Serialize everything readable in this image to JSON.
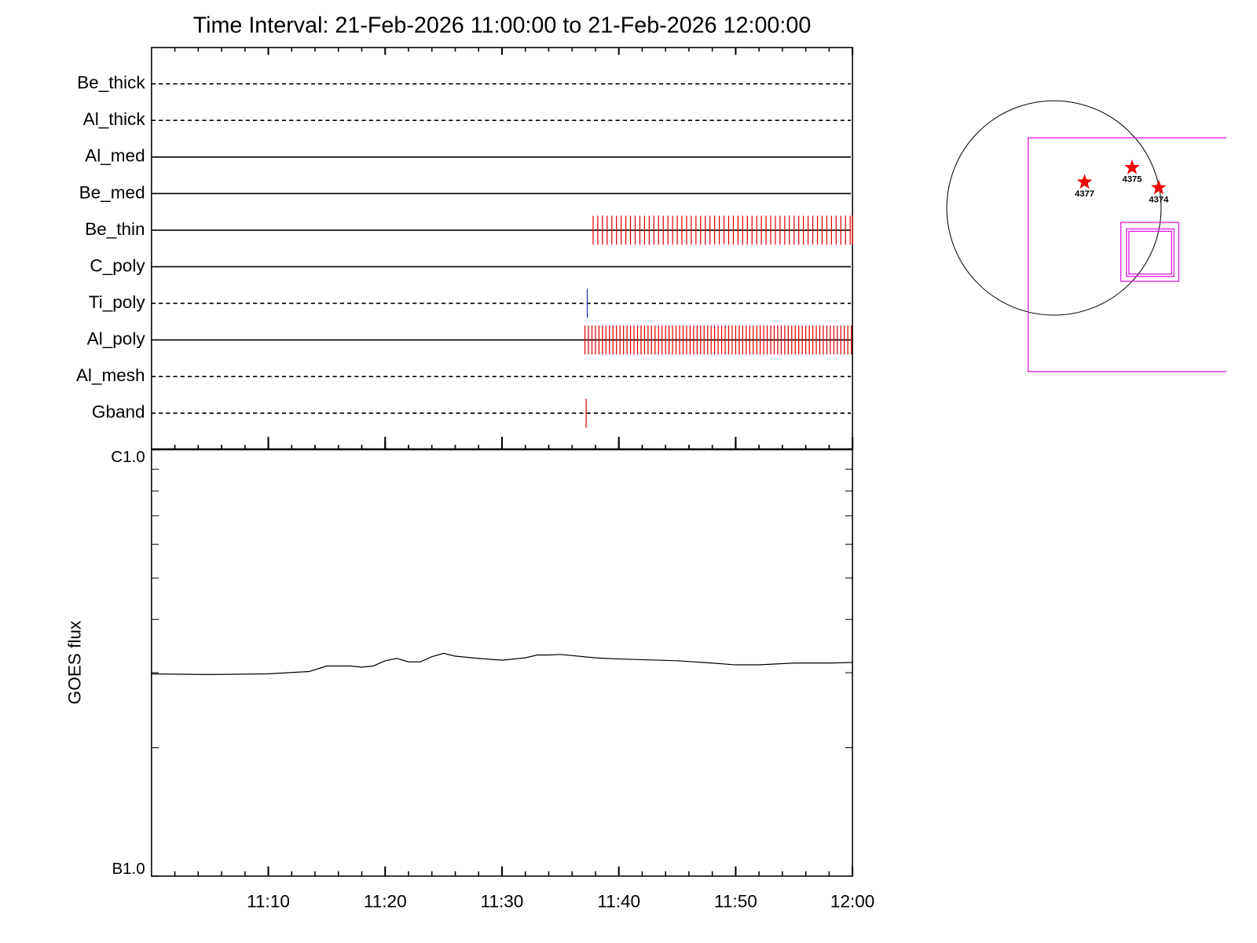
{
  "chart_data": [
    {
      "type": "timeline",
      "title": "Time Interval: 21-Feb-2026 11:00:00 to 21-Feb-2026 12:00:00",
      "xlim": [
        0,
        60
      ],
      "xticks": [
        10,
        20,
        30,
        40,
        50,
        60
      ],
      "xminorticks": [
        2,
        4,
        6,
        8,
        12,
        14,
        16,
        18,
        22,
        24,
        26,
        28,
        32,
        34,
        36,
        38,
        42,
        44,
        46,
        48,
        52,
        54,
        56,
        58
      ],
      "rows": [
        {
          "label": "Be_thick",
          "style": "dashed",
          "times": []
        },
        {
          "label": "Al_thick",
          "style": "dashed",
          "times": []
        },
        {
          "label": "Al_med",
          "style": "solid",
          "times": []
        },
        {
          "label": "Be_med",
          "style": "solid",
          "times": []
        },
        {
          "label": "Be_thin",
          "style": "solid",
          "color": "#e00000",
          "times": [
            37.8,
            38.2,
            38.6,
            39,
            39.4,
            39.8,
            40.2,
            40.6,
            41,
            41.4,
            41.8,
            42.2,
            42.6,
            43,
            43.4,
            43.8,
            44.2,
            44.6,
            45,
            45.4,
            45.8,
            46.2,
            46.6,
            47,
            47.4,
            47.8,
            48.2,
            48.6,
            49,
            49.4,
            49.8,
            50.2,
            50.6,
            51,
            51.4,
            51.8,
            52.2,
            52.6,
            53,
            53.4,
            53.8,
            54.2,
            54.6,
            55,
            55.4,
            55.8,
            56.2,
            56.6,
            57,
            57.4,
            57.8,
            58.2,
            58.6,
            59,
            59.4,
            59.8,
            60
          ]
        },
        {
          "label": "C_poly",
          "style": "solid",
          "times": []
        },
        {
          "label": "Ti_poly",
          "style": "dashed",
          "color": "#2030b0",
          "times": [
            37.3
          ]
        },
        {
          "label": "Al_poly",
          "style": "solid",
          "color": "#e00000",
          "times": [
            37.1,
            37.4,
            37.7,
            38,
            38.3,
            38.6,
            38.9,
            39.2,
            39.5,
            39.8,
            40.1,
            40.4,
            40.7,
            41,
            41.3,
            41.6,
            41.9,
            42.2,
            42.5,
            42.8,
            43.1,
            43.4,
            43.7,
            44,
            44.3,
            44.6,
            44.9,
            45.2,
            45.5,
            45.8,
            46.1,
            46.4,
            46.7,
            47,
            47.3,
            47.6,
            47.9,
            48.2,
            48.5,
            48.8,
            49.1,
            49.4,
            49.7,
            50,
            50.3,
            50.6,
            50.9,
            51.2,
            51.5,
            51.8,
            52.1,
            52.4,
            52.7,
            53,
            53.3,
            53.6,
            53.9,
            54.2,
            54.5,
            54.8,
            55.1,
            55.4,
            55.7,
            56,
            56.3,
            56.6,
            56.9,
            57.2,
            57.5,
            57.8,
            58.1,
            58.4,
            58.7,
            59,
            59.3,
            59.6,
            59.9
          ]
        },
        {
          "label": "Al_mesh",
          "style": "dashed",
          "times": []
        },
        {
          "label": "Gband",
          "style": "dashed",
          "color": "#e00000",
          "times": [
            37.2
          ]
        }
      ]
    },
    {
      "type": "line",
      "ylabel": "GOES flux",
      "log_scale": true,
      "color": "#000000",
      "xlim": [
        0,
        60
      ],
      "xticks": [
        {
          "value": 10,
          "label": "11:10"
        },
        {
          "value": 20,
          "label": "11:20"
        },
        {
          "value": 30,
          "label": "11:30"
        },
        {
          "value": 40,
          "label": "11:40"
        },
        {
          "value": 50,
          "label": "11:50"
        },
        {
          "value": 60,
          "label": "12:00"
        }
      ],
      "xminorticks": [
        2,
        4,
        6,
        8,
        12,
        14,
        16,
        18,
        22,
        24,
        26,
        28,
        32,
        34,
        36,
        38,
        42,
        44,
        46,
        48,
        52,
        54,
        56,
        58
      ],
      "ylim": [
        1e-07,
        1e-06
      ],
      "yticks": [
        {
          "value": 1e-07,
          "label": "B1.0"
        },
        {
          "value": 1e-06,
          "label": "C1.0"
        }
      ],
      "yminorticks": [
        2e-07,
        3e-07,
        4e-07,
        5e-07,
        6e-07,
        7e-07,
        8e-07,
        9e-07
      ],
      "x": [
        0,
        5,
        10,
        13.5,
        15,
        17,
        18,
        19,
        20,
        21,
        22,
        23,
        24,
        25,
        26,
        28,
        30,
        32,
        33,
        34,
        35,
        38,
        40,
        45,
        48,
        50,
        52,
        55,
        58,
        60
      ],
      "values": [
        2.98e-07,
        2.97e-07,
        2.98e-07,
        3.02e-07,
        3.11e-07,
        3.11e-07,
        3.09e-07,
        3.11e-07,
        3.2e-07,
        3.24e-07,
        3.18e-07,
        3.18e-07,
        3.27e-07,
        3.33e-07,
        3.28e-07,
        3.24e-07,
        3.21e-07,
        3.25e-07,
        3.3e-07,
        3.3e-07,
        3.31e-07,
        3.25e-07,
        3.23e-07,
        3.2e-07,
        3.16e-07,
        3.13e-07,
        3.13e-07,
        3.16e-07,
        3.16e-07,
        3.17e-07
      ]
    }
  ],
  "sun_map": {
    "regions": [
      "4377",
      "4375",
      "4374"
    ],
    "star_color": "#ee0000",
    "box_color": "#e020e0"
  }
}
